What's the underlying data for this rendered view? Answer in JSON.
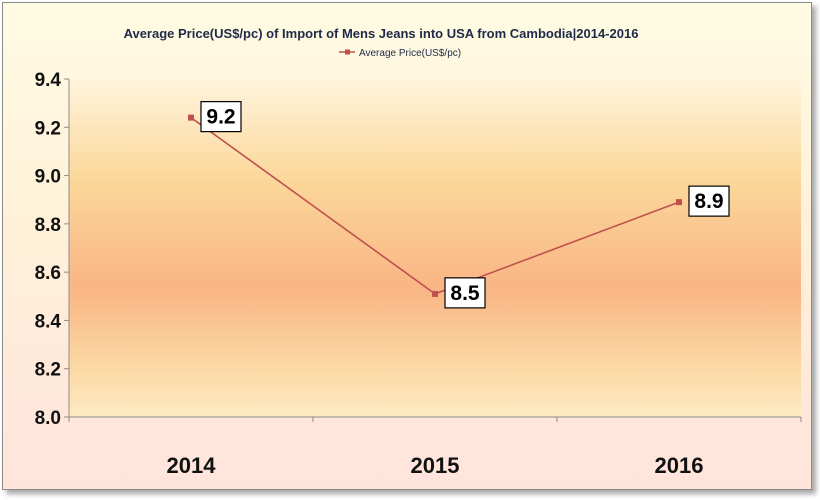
{
  "chart_data": {
    "type": "line",
    "title": "Average Price(US$/pc) of Import of Mens Jeans into USA from Cambodia|2014-2016",
    "categories": [
      "2014",
      "2015",
      "2016"
    ],
    "series": [
      {
        "name": "Average Price(US$/pc)",
        "values": [
          9.24,
          8.51,
          8.89
        ],
        "data_labels": [
          "9.2",
          "8.5",
          "8.9"
        ],
        "color": "#c0504d"
      }
    ],
    "ylim": [
      8.0,
      9.4
    ],
    "yticks": [
      "8.0",
      "8.2",
      "8.4",
      "8.6",
      "8.8",
      "9.0",
      "9.2",
      "9.4"
    ],
    "ytick_values": [
      8.0,
      8.2,
      8.4,
      8.6,
      8.8,
      9.0,
      9.2,
      9.4
    ],
    "legend_position": "top-center",
    "grid": false
  }
}
